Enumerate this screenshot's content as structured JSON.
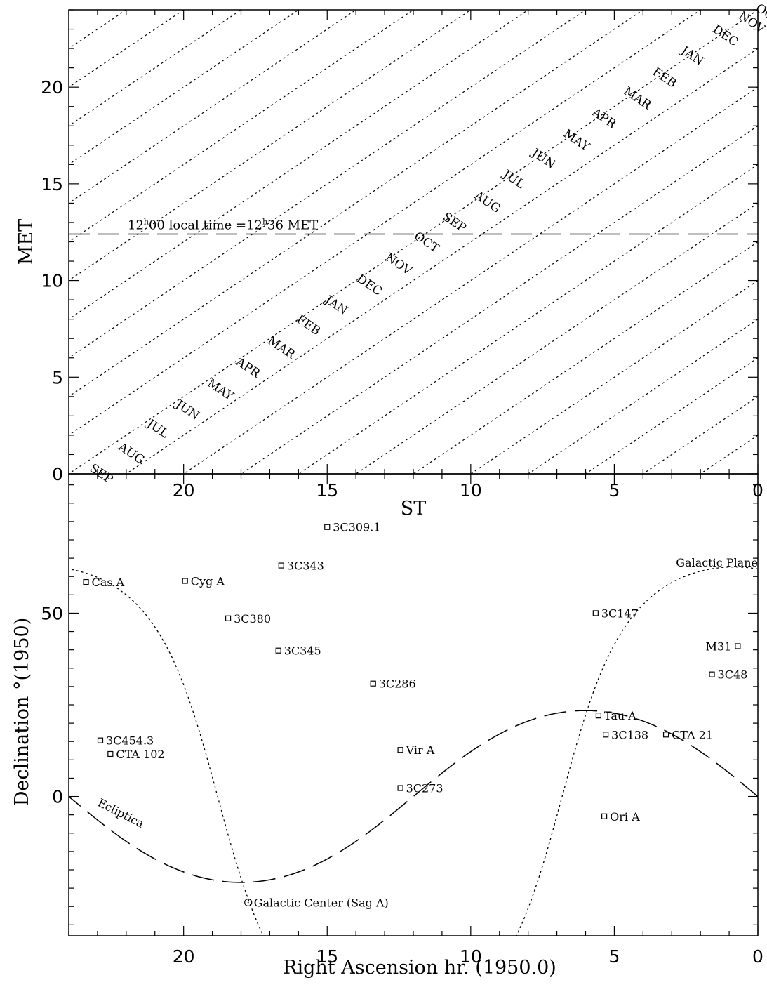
{
  "chart_data": [
    {
      "type": "line",
      "xlabel": "ST",
      "ylabel": "MET",
      "xlim": [
        24,
        0
      ],
      "ylim": [
        0,
        24
      ],
      "x_ticks": [
        "20",
        "15",
        "10",
        "5",
        "0"
      ],
      "y_ticks": [
        "0",
        "5",
        "10",
        "15",
        "20"
      ],
      "reference_line": {
        "value": 12.4,
        "label_prefix": "12",
        "label_sup1": "h",
        "label_mid": "00 local time =12",
        "label_sup2": "h",
        "label_suffix": "36 MET"
      },
      "month_lines_intercepts_at_ST0": [
        2.0,
        4.0,
        6.0,
        8.0,
        10.0,
        12.0,
        14.0,
        16.0,
        18.0,
        20.0,
        22.0,
        24.0,
        26.0,
        28.0,
        30.0,
        32.0,
        34.0,
        36.0,
        38.0,
        40.0,
        42.0,
        44.0,
        46.0
      ],
      "month_labels": [
        {
          "text": "SEP",
          "st": 23.3,
          "met": 0.2
        },
        {
          "text": "AUG",
          "st": 22.3,
          "met": 1.3
        },
        {
          "text": "JUL",
          "st": 21.3,
          "met": 2.5
        },
        {
          "text": "JUN",
          "st": 20.3,
          "met": 3.5
        },
        {
          "text": "MAY",
          "st": 19.2,
          "met": 4.6
        },
        {
          "text": "APR",
          "st": 18.2,
          "met": 5.7
        },
        {
          "text": "MAR",
          "st": 17.1,
          "met": 6.8
        },
        {
          "text": "FEB",
          "st": 16.1,
          "met": 7.9
        },
        {
          "text": "JAN",
          "st": 15.1,
          "met": 8.9
        },
        {
          "text": "DEC",
          "st": 14.0,
          "met": 10.0
        },
        {
          "text": "NOV",
          "st": 13.0,
          "met": 11.1
        },
        {
          "text": "OCT",
          "st": 12.0,
          "met": 12.2
        },
        {
          "text": "SEP",
          "st": 11.0,
          "met": 13.2
        },
        {
          "text": "AUG",
          "st": 9.9,
          "met": 14.3
        },
        {
          "text": "JUL",
          "st": 8.9,
          "met": 15.4
        },
        {
          "text": "JUN",
          "st": 7.9,
          "met": 16.5
        },
        {
          "text": "MAY",
          "st": 6.8,
          "met": 17.5
        },
        {
          "text": "APR",
          "st": 5.8,
          "met": 18.6
        },
        {
          "text": "MAR",
          "st": 4.7,
          "met": 19.7
        },
        {
          "text": "FEB",
          "st": 3.7,
          "met": 20.7
        },
        {
          "text": "JAN",
          "st": 2.7,
          "met": 21.8
        },
        {
          "text": "DEC",
          "st": 1.6,
          "met": 22.9
        },
        {
          "text": "NOV",
          "st": 0.7,
          "met": 23.6
        },
        {
          "text": "OCT",
          "st": 0.1,
          "met": 24.0
        }
      ]
    },
    {
      "type": "scatter",
      "xlabel": "Right Ascension hr. (1950.0)",
      "ylabel": "Declination  °(1950)",
      "xlim": [
        24,
        0
      ],
      "ylim": [
        -38,
        88
      ],
      "x_ticks": [
        "20",
        "15",
        "10",
        "5",
        "0"
      ],
      "y_ticks": [
        "0",
        "50"
      ],
      "sources": [
        {
          "name": "3C309.1",
          "ra": 15.0,
          "dec": 73.5
        },
        {
          "name": "3C343",
          "ra": 16.6,
          "dec": 63.0
        },
        {
          "name": "Cas A",
          "ra": 23.4,
          "dec": 58.5
        },
        {
          "name": "Cyg A",
          "ra": 19.95,
          "dec": 58.8
        },
        {
          "name": "3C380",
          "ra": 18.45,
          "dec": 48.6
        },
        {
          "name": "3C345",
          "ra": 16.7,
          "dec": 39.8
        },
        {
          "name": "3C286",
          "ra": 13.4,
          "dec": 30.8
        },
        {
          "name": "3C147",
          "ra": 5.65,
          "dec": 50.0
        },
        {
          "name": "M31",
          "ra": 0.7,
          "dec": 41.0
        },
        {
          "name": "3C48",
          "ra": 1.6,
          "dec": 33.3
        },
        {
          "name": "Tau A",
          "ra": 5.55,
          "dec": 22.1
        },
        {
          "name": "3C138",
          "ra": 5.3,
          "dec": 16.9
        },
        {
          "name": "CTA 21",
          "ra": 3.2,
          "dec": 16.9
        },
        {
          "name": "3C454.3",
          "ra": 22.9,
          "dec": 15.3
        },
        {
          "name": "CTA 102",
          "ra": 22.55,
          "dec": 11.6
        },
        {
          "name": "Vir A",
          "ra": 12.45,
          "dec": 12.7
        },
        {
          "name": "3C273",
          "ra": 12.45,
          "dec": 2.3
        },
        {
          "name": "Ori A",
          "ra": 5.35,
          "dec": -5.4
        },
        {
          "name": "Galactic Center (Sag A)",
          "ra": 17.75,
          "dec": -28.9,
          "marker": "circle"
        }
      ],
      "ecliptic_label": "Ecliptica",
      "galactic_plane_label": "Galactic Plane"
    }
  ]
}
